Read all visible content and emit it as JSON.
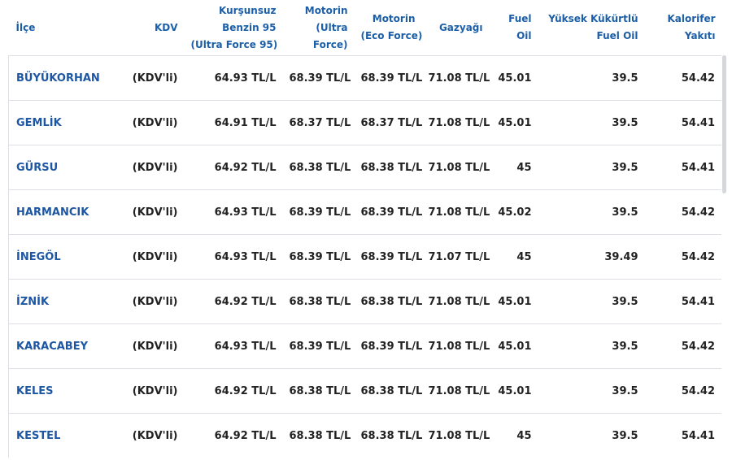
{
  "table": {
    "header": [
      [
        "İlçe"
      ],
      [
        "KDV"
      ],
      [
        "Kurşunsuz",
        "Benzin 95",
        "(Ultra Force 95)"
      ],
      [
        "Motorin",
        "(Ultra",
        "Force)"
      ],
      [
        "Motorin",
        "(Eco Force)"
      ],
      [
        "Gazyağı"
      ],
      [
        "Fuel",
        "Oil"
      ],
      [
        "Yüksek Kükürtlü",
        "Fuel Oil"
      ],
      [
        "Kalorifer",
        "Yakıtı"
      ]
    ],
    "rows": [
      [
        "BÜYÜKORHAN",
        "(KDV'li)",
        "64.93 TL/L",
        "68.39 TL/L",
        "68.39 TL/L",
        "71.08 TL/L",
        "45.01",
        "39.5",
        "54.42"
      ],
      [
        "GEMLİK",
        "(KDV'li)",
        "64.91 TL/L",
        "68.37 TL/L",
        "68.37 TL/L",
        "71.08 TL/L",
        "45.01",
        "39.5",
        "54.41"
      ],
      [
        "GÜRSU",
        "(KDV'li)",
        "64.92 TL/L",
        "68.38 TL/L",
        "68.38 TL/L",
        "71.08 TL/L",
        "45",
        "39.5",
        "54.41"
      ],
      [
        "HARMANCIK",
        "(KDV'li)",
        "64.93 TL/L",
        "68.39 TL/L",
        "68.39 TL/L",
        "71.08 TL/L",
        "45.02",
        "39.5",
        "54.42"
      ],
      [
        "İNEGÖL",
        "(KDV'li)",
        "64.93 TL/L",
        "68.39 TL/L",
        "68.39 TL/L",
        "71.07 TL/L",
        "45",
        "39.49",
        "54.42"
      ],
      [
        "İZNİK",
        "(KDV'li)",
        "64.92 TL/L",
        "68.38 TL/L",
        "68.38 TL/L",
        "71.08 TL/L",
        "45.01",
        "39.5",
        "54.41"
      ],
      [
        "KARACABEY",
        "(KDV'li)",
        "64.93 TL/L",
        "68.39 TL/L",
        "68.39 TL/L",
        "71.08 TL/L",
        "45.01",
        "39.5",
        "54.42"
      ],
      [
        "KELES",
        "(KDV'li)",
        "64.92 TL/L",
        "68.38 TL/L",
        "68.38 TL/L",
        "71.08 TL/L",
        "45.01",
        "39.5",
        "54.42"
      ],
      [
        "KESTEL",
        "(KDV'li)",
        "64.92 TL/L",
        "68.38 TL/L",
        "68.38 TL/L",
        "71.08 TL/L",
        "45",
        "39.5",
        "54.41"
      ]
    ]
  }
}
